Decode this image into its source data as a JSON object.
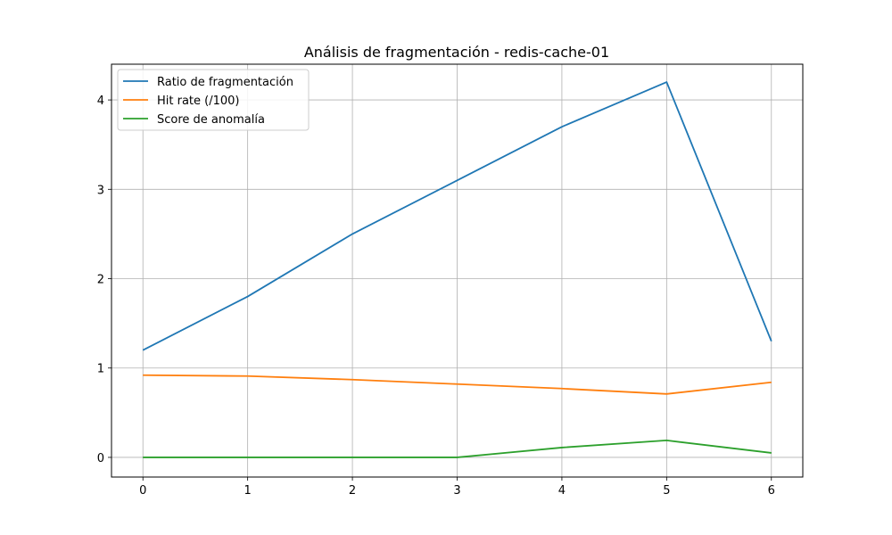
{
  "chart_data": {
    "type": "line",
    "title": "Análisis de fragmentación - redis-cache-01",
    "xlabel": "",
    "ylabel": "",
    "x": [
      0,
      1,
      2,
      3,
      4,
      5,
      6
    ],
    "xlim": [
      -0.3,
      6.3
    ],
    "ylim": [
      -0.22,
      4.4
    ],
    "xticks": [
      0,
      1,
      2,
      3,
      4,
      5,
      6
    ],
    "yticks": [
      0,
      1,
      2,
      3,
      4
    ],
    "grid": true,
    "legend_position": "top-left",
    "series": [
      {
        "name": "Ratio de fragmentación",
        "color": "#1f77b4",
        "values": [
          1.2,
          1.8,
          2.5,
          3.1,
          3.7,
          4.2,
          1.3
        ]
      },
      {
        "name": "Hit rate (/100)",
        "color": "#ff7f0e",
        "values": [
          0.92,
          0.91,
          0.87,
          0.82,
          0.77,
          0.71,
          0.84
        ]
      },
      {
        "name": "Score de anomalía",
        "color": "#2ca02c",
        "values": [
          0.0,
          0.0,
          0.0,
          0.0,
          0.11,
          0.19,
          0.05
        ]
      }
    ]
  }
}
